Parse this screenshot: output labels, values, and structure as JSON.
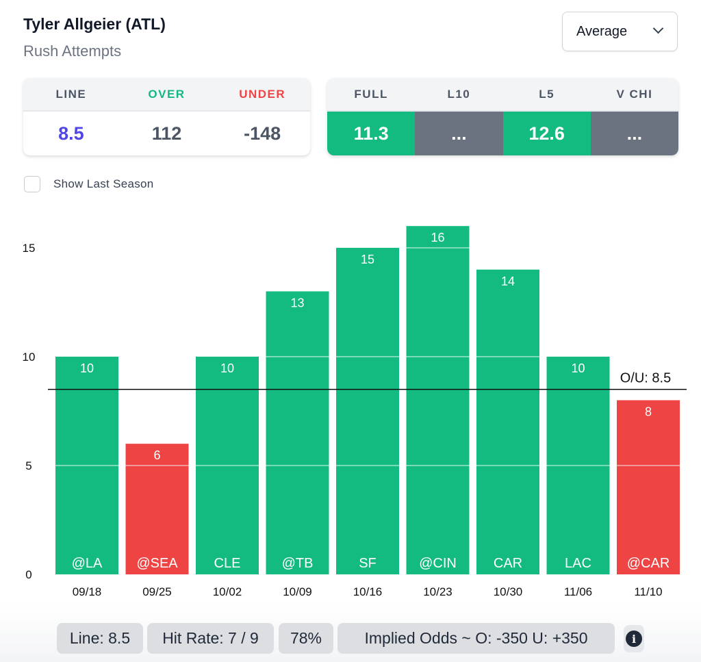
{
  "header": {
    "title": "Tyler Allgeier (ATL)",
    "subtitle": "Rush Attempts",
    "dropdown": "Average"
  },
  "odds_card": {
    "headers": [
      "LINE",
      "OVER",
      "UNDER"
    ],
    "values": [
      "8.5",
      "112",
      "-148"
    ],
    "colors": {
      "line": "#4f46e5",
      "over": "#10b981",
      "under": "#ef4444"
    }
  },
  "avg_card": {
    "headers": [
      "FULL",
      "L10",
      "L5",
      "V CHI"
    ],
    "values": [
      "11.3",
      "...",
      "12.6",
      "..."
    ],
    "states": [
      "green",
      "gray",
      "green",
      "gray"
    ]
  },
  "checkbox": {
    "label": "Show Last Season",
    "checked": false
  },
  "colors": {
    "over": "#13bb80",
    "under": "#ef4444",
    "na": "#6b7280"
  },
  "chart_data": {
    "type": "bar",
    "categories": [
      "09/18",
      "09/25",
      "10/02",
      "10/09",
      "10/16",
      "10/23",
      "10/30",
      "11/06",
      "11/10"
    ],
    "opponents": [
      "@LA",
      "@SEA",
      "CLE",
      "@TB",
      "SF",
      "@CIN",
      "CAR",
      "LAC",
      "@CAR"
    ],
    "values": [
      10,
      6,
      10,
      13,
      15,
      16,
      14,
      10,
      8
    ],
    "ylim": [
      0,
      16
    ],
    "yticks": [
      0,
      5,
      10,
      15
    ],
    "line": {
      "value": 8.5,
      "label": "O/U: 8.5"
    },
    "grid": true
  },
  "footer": {
    "line": "Line: 8.5",
    "hit_rate": "Hit Rate: 7 / 9",
    "pct": "78%",
    "implied": "Implied Odds ~ O: -350 U: +350"
  }
}
